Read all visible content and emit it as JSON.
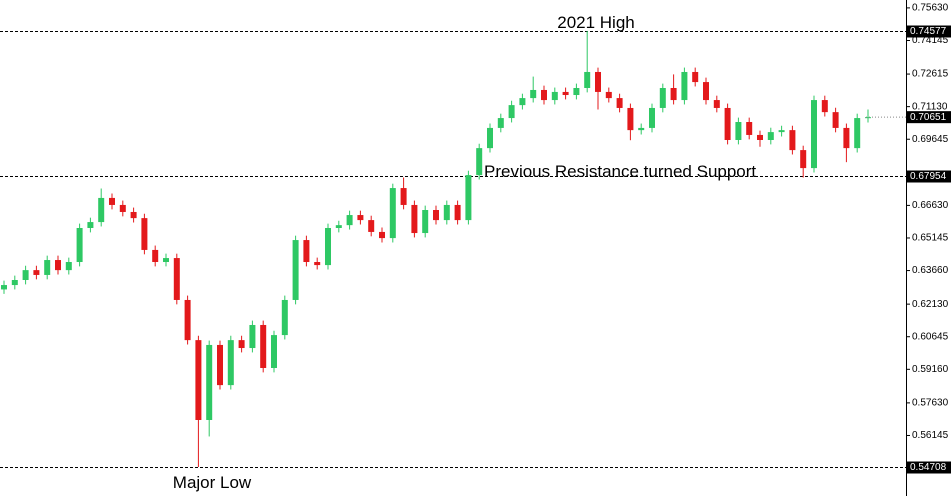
{
  "chart_data": {
    "type": "candlestick",
    "open": [
      0.628,
      0.63,
      0.6323,
      0.6368,
      0.6346,
      0.6414,
      0.6368,
      0.6405,
      0.656,
      0.6587,
      0.6697,
      0.6665,
      0.6633,
      0.6605,
      0.646,
      0.6405,
      0.6423,
      0.6232,
      0.6049,
      0.5685,
      0.6027,
      0.5844,
      0.6049,
      0.6013,
      0.6118,
      0.5922,
      0.6072,
      0.6232,
      0.6505,
      0.6405,
      0.6391,
      0.656,
      0.6573,
      0.6619,
      0.6596,
      0.6542,
      0.6514,
      0.6742,
      0.6665,
      0.6537,
      0.6642,
      0.6596,
      0.6665,
      0.6596,
      0.6801,
      0.6924,
      0.7016,
      0.7061,
      0.712,
      0.7152,
      0.7189,
      0.7143,
      0.718,
      0.7166,
      0.7198,
      0.7271,
      0.718,
      0.7152,
      0.7107,
      0.7006,
      0.7016,
      0.7107,
      0.7198,
      0.7143,
      0.7271,
      0.7225,
      0.7143,
      0.7107,
      0.6961,
      0.7043,
      0.6984,
      0.6961,
      0.6997,
      0.7006,
      0.6915,
      0.6833,
      0.7143,
      0.7088,
      0.7016,
      0.6924,
      0.7061
    ],
    "high": [
      0.632,
      0.6343,
      0.6388,
      0.6388,
      0.6434,
      0.6434,
      0.6425,
      0.658,
      0.6607,
      0.674,
      0.6717,
      0.6685,
      0.6653,
      0.6625,
      0.648,
      0.6443,
      0.6443,
      0.6252,
      0.6069,
      0.6047,
      0.6047,
      0.6069,
      0.6069,
      0.6138,
      0.6138,
      0.6092,
      0.6252,
      0.6525,
      0.6525,
      0.6425,
      0.658,
      0.6593,
      0.6639,
      0.6639,
      0.6616,
      0.6562,
      0.6762,
      0.679,
      0.6685,
      0.6662,
      0.6662,
      0.6685,
      0.6685,
      0.6821,
      0.6944,
      0.7036,
      0.7081,
      0.714,
      0.7172,
      0.725,
      0.7209,
      0.72,
      0.72,
      0.7218,
      0.7458,
      0.7291,
      0.72,
      0.7172,
      0.7127,
      0.7036,
      0.7127,
      0.7218,
      0.726,
      0.7291,
      0.7291,
      0.7245,
      0.7163,
      0.7127,
      0.7063,
      0.7063,
      0.7004,
      0.7017,
      0.7026,
      0.7026,
      0.6935,
      0.7163,
      0.7163,
      0.7108,
      0.7036,
      0.7081,
      0.71
    ],
    "low": [
      0.626,
      0.628,
      0.6303,
      0.6326,
      0.6326,
      0.6348,
      0.6348,
      0.6385,
      0.654,
      0.6567,
      0.6645,
      0.6613,
      0.6585,
      0.644,
      0.6385,
      0.6385,
      0.6212,
      0.6029,
      0.5471,
      0.561,
      0.5824,
      0.5824,
      0.5993,
      0.5993,
      0.5902,
      0.5902,
      0.6052,
      0.6212,
      0.6385,
      0.6371,
      0.6371,
      0.654,
      0.6553,
      0.6576,
      0.6522,
      0.6494,
      0.6494,
      0.6645,
      0.6517,
      0.6517,
      0.6576,
      0.6576,
      0.6576,
      0.6576,
      0.6781,
      0.6904,
      0.6996,
      0.7041,
      0.71,
      0.7132,
      0.7123,
      0.7123,
      0.7146,
      0.7146,
      0.7178,
      0.71,
      0.7132,
      0.7087,
      0.696,
      0.6986,
      0.6996,
      0.7087,
      0.7123,
      0.7123,
      0.7205,
      0.7123,
      0.7087,
      0.6941,
      0.6941,
      0.6964,
      0.693,
      0.6941,
      0.6977,
      0.6895,
      0.679,
      0.6813,
      0.7068,
      0.6996,
      0.686,
      0.6904,
      0.7041
    ],
    "close": [
      0.63,
      0.6323,
      0.6368,
      0.6346,
      0.6414,
      0.6368,
      0.6405,
      0.656,
      0.6587,
      0.6697,
      0.6665,
      0.6633,
      0.6605,
      0.646,
      0.6405,
      0.6423,
      0.6232,
      0.6049,
      0.5685,
      0.6027,
      0.5844,
      0.6049,
      0.6013,
      0.6118,
      0.5922,
      0.6072,
      0.6232,
      0.6505,
      0.6405,
      0.6391,
      0.656,
      0.6573,
      0.6619,
      0.6596,
      0.6542,
      0.6514,
      0.6742,
      0.6665,
      0.6537,
      0.6642,
      0.6596,
      0.6665,
      0.6596,
      0.6801,
      0.6924,
      0.7016,
      0.7061,
      0.712,
      0.7152,
      0.7189,
      0.7143,
      0.718,
      0.7166,
      0.7198,
      0.7271,
      0.718,
      0.7152,
      0.7107,
      0.7006,
      0.7016,
      0.7107,
      0.7198,
      0.7143,
      0.7271,
      0.7225,
      0.7143,
      0.7107,
      0.6961,
      0.7043,
      0.6984,
      0.6961,
      0.6997,
      0.7006,
      0.6915,
      0.6833,
      0.7143,
      0.7088,
      0.7016,
      0.6924,
      0.7061,
      0.7065
    ],
    "up_color": "#2ec864",
    "down_color": "#e3191b",
    "ylim": [
      0.5366,
      0.7599
    ],
    "yticks": [
      {
        "value": 0.7563,
        "label": "0.75630"
      },
      0.74145,
      0.72615,
      {
        "value": 0.7113,
        "label": "0.71130"
      },
      0.69645,
      {
        "value": 0.6663,
        "label": "0.66630"
      },
      0.65145,
      {
        "value": 0.6366,
        "label": "0.63660"
      },
      {
        "value": 0.6213,
        "label": "0.62130"
      },
      0.60645,
      {
        "value": 0.5916,
        "label": "0.59160"
      },
      {
        "value": 0.5763,
        "label": "0.57630"
      },
      0.56145
    ],
    "levels": [
      0.74577,
      0.67954,
      0.54708
    ],
    "last_price": 0.70651,
    "annotations": [
      "2021 High",
      "Previous Resistance turned Support",
      "Major Low"
    ]
  }
}
